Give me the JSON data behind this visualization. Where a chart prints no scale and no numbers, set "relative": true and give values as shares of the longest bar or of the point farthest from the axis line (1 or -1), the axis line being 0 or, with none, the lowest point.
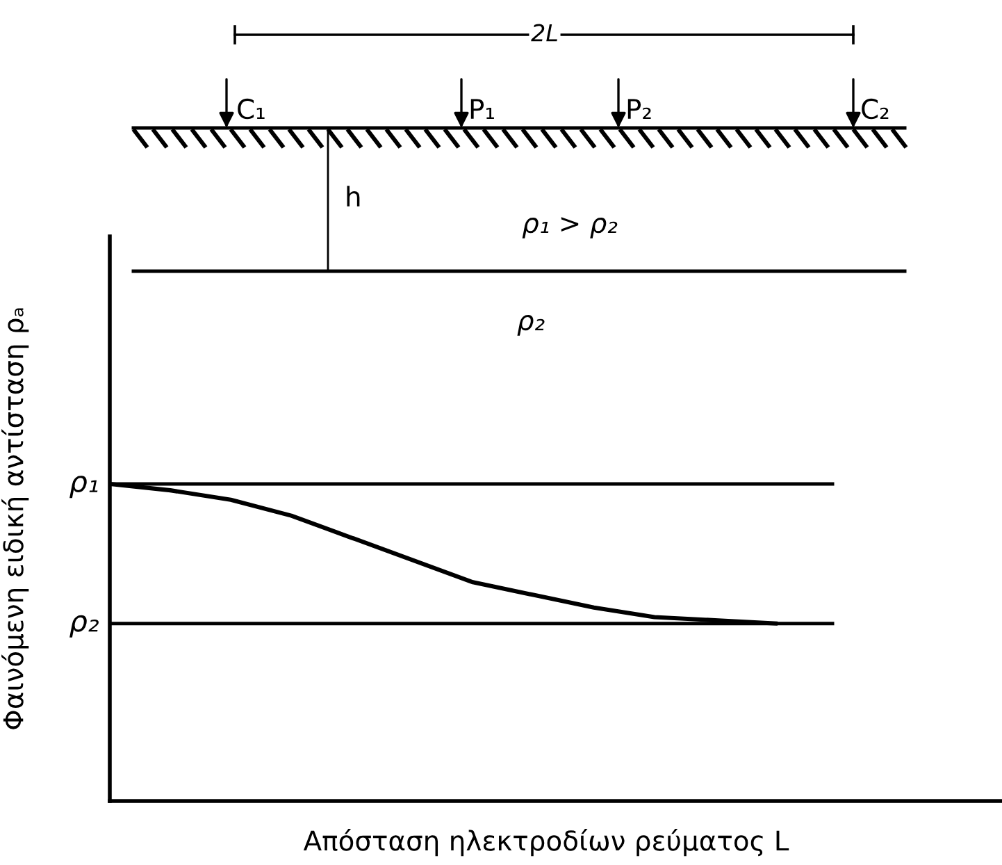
{
  "chart_data": {
    "type": "line",
    "relative": true,
    "xlabel": "Απόσταση ηλεκτροδίων ρεύματος L",
    "ylabel": "Φαινόμενη ειδική αντίσταση ρₐ",
    "categories": [
      null,
      null,
      null,
      null,
      null,
      null,
      null,
      null,
      null,
      null,
      null,
      null
    ],
    "series": [
      {
        "color": "#000000",
        "values": [
          1,
          0.98,
          0.95,
          0.9,
          0.83,
          0.76,
          0.69,
          0.65,
          0.61,
          0.58,
          0.57,
          0.56
        ]
      }
    ],
    "ref_lines": [
      {
        "axis": "y",
        "value": 1,
        "label": "ρ₁",
        "color": "#000000"
      },
      {
        "axis": "y",
        "value": 0.56,
        "label": "ρ₂",
        "color": "#000000"
      }
    ],
    "annotations": [
      "2L",
      "C₁",
      "P₁",
      "P₂",
      "C₂",
      "h",
      "ρ₁ > ρ₂",
      "ρ₂"
    ],
    "legend": false,
    "marker": "none",
    "line_style": "solid"
  }
}
